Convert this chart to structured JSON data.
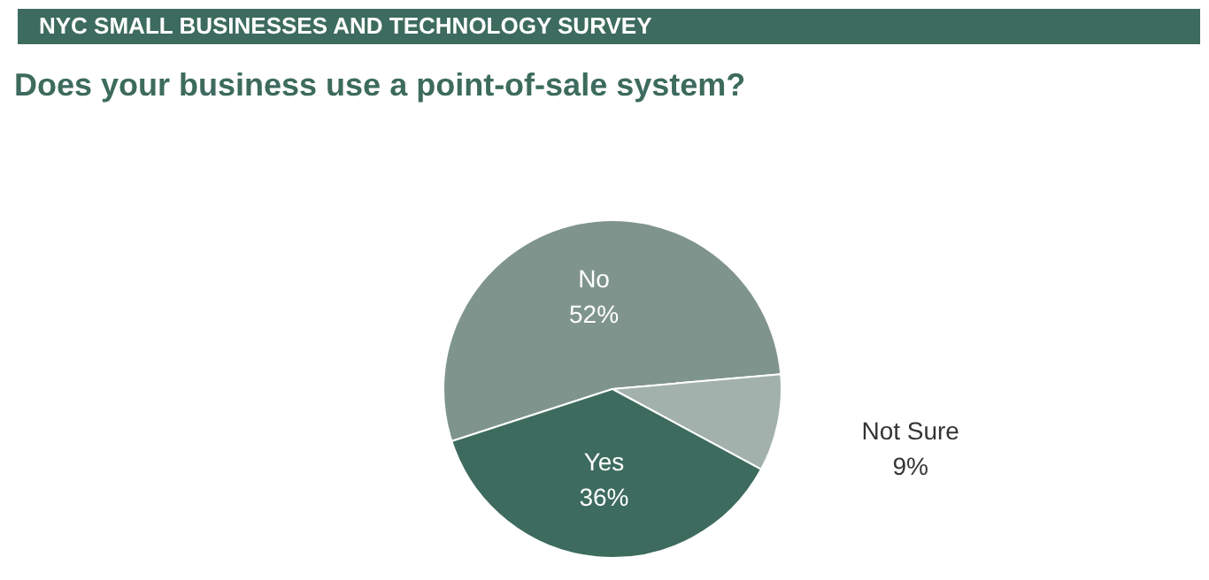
{
  "chart_data": {
    "type": "pie",
    "title": "NYC SMALL BUSINESSES AND TECHNOLOGY SURVEY",
    "subtitle": "Does your business use a point-of-sale system?",
    "categories": [
      "No",
      "Not Sure",
      "Yes"
    ],
    "values": [
      52,
      9,
      36
    ],
    "colors": [
      "#7f948d",
      "#a3b1ac",
      "#3d6b5e"
    ],
    "value_labels": [
      "52%",
      "9%",
      "36%"
    ],
    "legend": false
  }
}
